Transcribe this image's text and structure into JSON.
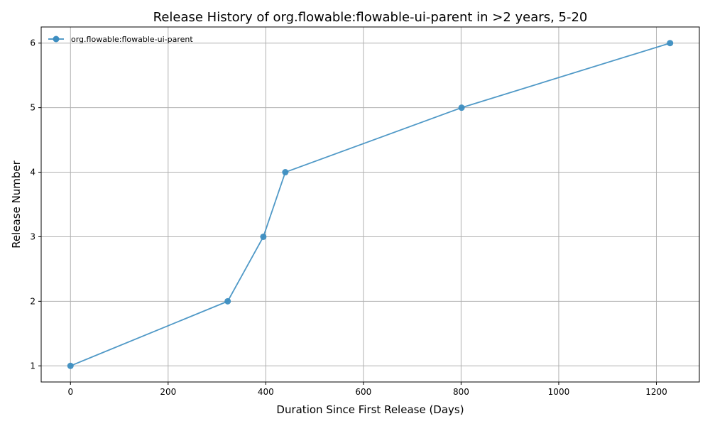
{
  "chart_data": {
    "type": "line",
    "title": "Release History of org.flowable:flowable-ui-parent in >2 years, 5-20",
    "xlabel": "Duration Since First Release (Days)",
    "ylabel": "Release Number",
    "xlim": [
      -60,
      1288
    ],
    "ylim": [
      0.75,
      6.25
    ],
    "xticks": [
      0,
      200,
      400,
      600,
      800,
      1000,
      1200
    ],
    "yticks": [
      1,
      2,
      3,
      4,
      5,
      6
    ],
    "grid": true,
    "legend_position": "top-left",
    "series": [
      {
        "name": "org.flowable:flowable-ui-parent",
        "color": "#3d8ec1",
        "marker": "circle",
        "x": [
          0,
          322,
          395,
          440,
          801,
          1228
        ],
        "y": [
          1,
          2,
          3,
          4,
          5,
          6
        ]
      }
    ]
  }
}
